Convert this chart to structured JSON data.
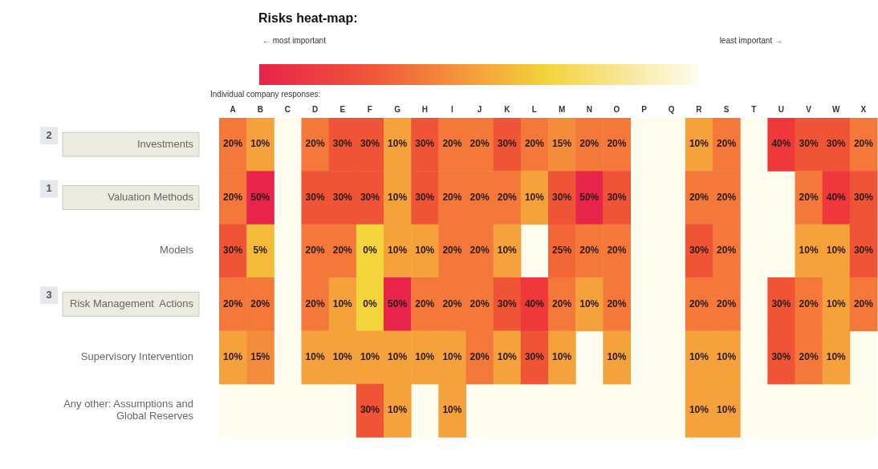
{
  "chart_data": {
    "type": "heatmap",
    "title": "Risks heat-map:",
    "annotations": [
      "← most important",
      "least important →",
      "Individual company responses:"
    ],
    "y2_categories": [
      "2",
      "1",
      null,
      "3",
      null,
      null
    ],
    "categories": [
      "A",
      "B",
      "C",
      "D",
      "E",
      "F",
      "G",
      "H",
      "I",
      "J",
      "K",
      "L",
      "M",
      "N",
      "O",
      "P",
      "Q",
      "R",
      "S",
      "T",
      "U",
      "V",
      "W",
      "X"
    ],
    "y_categories": [
      "Investments",
      "Valuation Methods",
      "Models",
      "Risk Management  Actions",
      "Supervisory Intervention",
      "Any other:  Assumptions and Global Reserves"
    ],
    "cells": [
      [
        20,
        10,
        null,
        20,
        30,
        30,
        10,
        30,
        20,
        20,
        30,
        20,
        15,
        20,
        20,
        null,
        null,
        10,
        20,
        null,
        40,
        30,
        30,
        20
      ],
      [
        20,
        50,
        null,
        30,
        30,
        30,
        10,
        30,
        20,
        20,
        20,
        10,
        30,
        50,
        30,
        null,
        null,
        20,
        20,
        null,
        null,
        20,
        40,
        30
      ],
      [
        30,
        5,
        null,
        20,
        20,
        0,
        10,
        10,
        20,
        20,
        10,
        null,
        25,
        20,
        20,
        null,
        null,
        30,
        20,
        null,
        null,
        10,
        10,
        30
      ],
      [
        20,
        20,
        null,
        20,
        10,
        0,
        50,
        20,
        20,
        20,
        30,
        40,
        20,
        10,
        20,
        null,
        null,
        20,
        20,
        null,
        30,
        20,
        10,
        20
      ],
      [
        10,
        15,
        null,
        10,
        10,
        10,
        10,
        10,
        10,
        20,
        10,
        30,
        10,
        null,
        10,
        null,
        null,
        10,
        10,
        null,
        30,
        20,
        10,
        null
      ],
      [
        null,
        null,
        null,
        null,
        null,
        30,
        10,
        null,
        10,
        null,
        null,
        null,
        null,
        null,
        null,
        null,
        null,
        10,
        10,
        null,
        null,
        null,
        null,
        null
      ]
    ],
    "cell_labels": [
      [
        "20%",
        "10%",
        null,
        "20%",
        "30%",
        "30%",
        "10%",
        "30%",
        "20%",
        "20%",
        "30%",
        "20%",
        "15%",
        "20%",
        "20%",
        null,
        null,
        "10%",
        "20%",
        null,
        "40%",
        "30%",
        "30%",
        "20%"
      ],
      [
        "20%",
        "50%",
        null,
        "30%",
        "30%",
        "30%",
        "10%",
        "30%",
        "20%",
        "20%",
        "20%",
        "10%",
        "30%",
        "50%",
        "30%",
        null,
        null,
        "20%",
        "20%",
        null,
        null,
        "20%",
        "40%",
        "30%"
      ],
      [
        "30%",
        "5%",
        null,
        "20%",
        "20%",
        "0%",
        "10%",
        "10%",
        "20%",
        "20%",
        "10%",
        null,
        "25%",
        "20%",
        "20%",
        null,
        null,
        "30%",
        "20%",
        null,
        null,
        "10%",
        "10%",
        "30%"
      ],
      [
        "20%",
        "20%",
        null,
        "20%",
        "10%",
        "0%",
        "50%",
        "20%",
        "20%",
        "20%",
        "30%",
        "40%",
        "20%",
        "10%",
        "20%",
        null,
        null,
        "20%",
        "20%",
        null,
        "30%",
        "20%",
        "10%",
        "20%"
      ],
      [
        "10%",
        "15%",
        null,
        "10%",
        "10%",
        "10%",
        "10%",
        "10%",
        "10%",
        "20%",
        "10%",
        "30%",
        "10%",
        null,
        "10%",
        null,
        null,
        "10%",
        "10%",
        null,
        "30%",
        "20%",
        "10%",
        null
      ],
      [
        null,
        null,
        null,
        null,
        null,
        "30%",
        "10%",
        null,
        "10%",
        null,
        null,
        null,
        null,
        null,
        null,
        null,
        null,
        "10%",
        "10%",
        null,
        null,
        null,
        null,
        null
      ]
    ]
  }
}
